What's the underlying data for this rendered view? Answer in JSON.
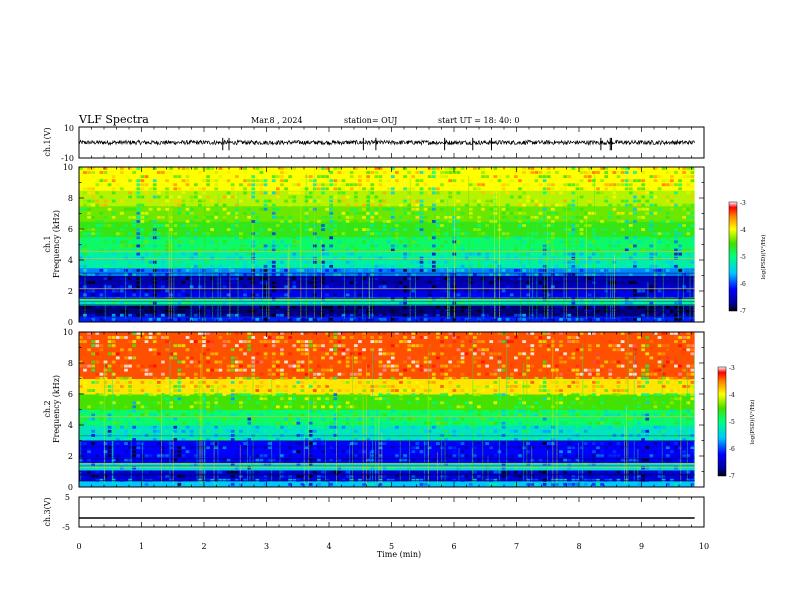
{
  "header": {
    "title": "VLF Spectra",
    "date": "Mar.8 , 2024",
    "station": "station= OUJ",
    "start_ut": "start  UT =  18: 40: 0"
  },
  "chart_data": [
    {
      "type": "line",
      "ylabel": "ch.1(V)",
      "ylim": [
        -10,
        10
      ],
      "ytick_labels": [
        "10",
        "-10"
      ],
      "trace_level": 0,
      "noise_amplitude": 1.4,
      "spikes": [
        2.3,
        2.4,
        4.55,
        4.75,
        5.85,
        6.3,
        6.6,
        8.35,
        8.5,
        8.52
      ]
    },
    {
      "type": "heatmap",
      "channel_label": "ch.1",
      "ylabel": "Frequency (kHz)",
      "ylim": [
        0,
        10
      ],
      "ytick_labels": [
        "0",
        "2",
        "4",
        "6",
        "8",
        "10"
      ],
      "colorbar": {
        "label": "log(PSD)(V²/Hz)",
        "range": [
          -7,
          -3
        ],
        "tick_labels": [
          "-3",
          "-4",
          "-5",
          "-6",
          "-7"
        ]
      },
      "bands": [
        {
          "f0": 0,
          "f1": 0.4,
          "log_psd": -6.1
        },
        {
          "f0": 0.4,
          "f1": 1.1,
          "log_psd": -6.8
        },
        {
          "f0": 1.1,
          "f1": 1.6,
          "log_psd": -5.2
        },
        {
          "f0": 1.6,
          "f1": 2.3,
          "log_psd": -6.3
        },
        {
          "f0": 2.3,
          "f1": 3.0,
          "log_psd": -6.6
        },
        {
          "f0": 3.0,
          "f1": 3.5,
          "log_psd": -5.8
        },
        {
          "f0": 3.5,
          "f1": 4.5,
          "log_psd": -5.2
        },
        {
          "f0": 4.5,
          "f1": 5.5,
          "log_psd": -4.9
        },
        {
          "f0": 5.5,
          "f1": 6.5,
          "log_psd": -4.6
        },
        {
          "f0": 6.5,
          "f1": 7.5,
          "log_psd": -4.4
        },
        {
          "f0": 7.5,
          "f1": 8.5,
          "log_psd": -4.2
        },
        {
          "f0": 8.5,
          "f1": 10,
          "log_psd": -4.0
        }
      ],
      "tone_lines_khz": [
        1.45,
        2.15,
        4.55,
        4.1
      ]
    },
    {
      "type": "heatmap",
      "channel_label": "ch.2",
      "ylabel": "Frequency (kHz)",
      "ylim": [
        0,
        10
      ],
      "ytick_labels": [
        "0",
        "2",
        "4",
        "6",
        "8",
        "10"
      ],
      "colorbar": {
        "label": "log(PSD)(V²/Hz)",
        "range": [
          -7,
          -3
        ],
        "tick_labels": [
          "-3",
          "-4",
          "-5",
          "-6",
          "-7"
        ]
      },
      "bands": [
        {
          "f0": 0,
          "f1": 0.4,
          "log_psd": -5.6
        },
        {
          "f0": 0.4,
          "f1": 1.1,
          "log_psd": -6.4
        },
        {
          "f0": 1.1,
          "f1": 1.6,
          "log_psd": -5.4
        },
        {
          "f0": 1.6,
          "f1": 3.0,
          "log_psd": -6.2
        },
        {
          "f0": 3.0,
          "f1": 4.0,
          "log_psd": -5.3
        },
        {
          "f0": 4.0,
          "f1": 5.0,
          "log_psd": -4.9
        },
        {
          "f0": 5.0,
          "f1": 6.0,
          "log_psd": -4.5
        },
        {
          "f0": 6.0,
          "f1": 7.0,
          "log_psd": -3.9
        },
        {
          "f0": 7.0,
          "f1": 10,
          "log_psd": -3.4
        }
      ],
      "tone_lines_khz": [
        1.25,
        1.5,
        4.55
      ]
    },
    {
      "type": "line",
      "ylabel": "ch.3(V)",
      "ylim": [
        -5,
        5
      ],
      "ytick_labels": [
        "5",
        "-5"
      ],
      "trace_level": -2.0
    }
  ],
  "time_axis": {
    "label": "Time  (min)",
    "range": [
      0,
      10
    ],
    "data_end": 9.85,
    "tick_labels": [
      "0",
      "1",
      "2",
      "3",
      "4",
      "5",
      "6",
      "7",
      "8",
      "9",
      "10"
    ]
  }
}
